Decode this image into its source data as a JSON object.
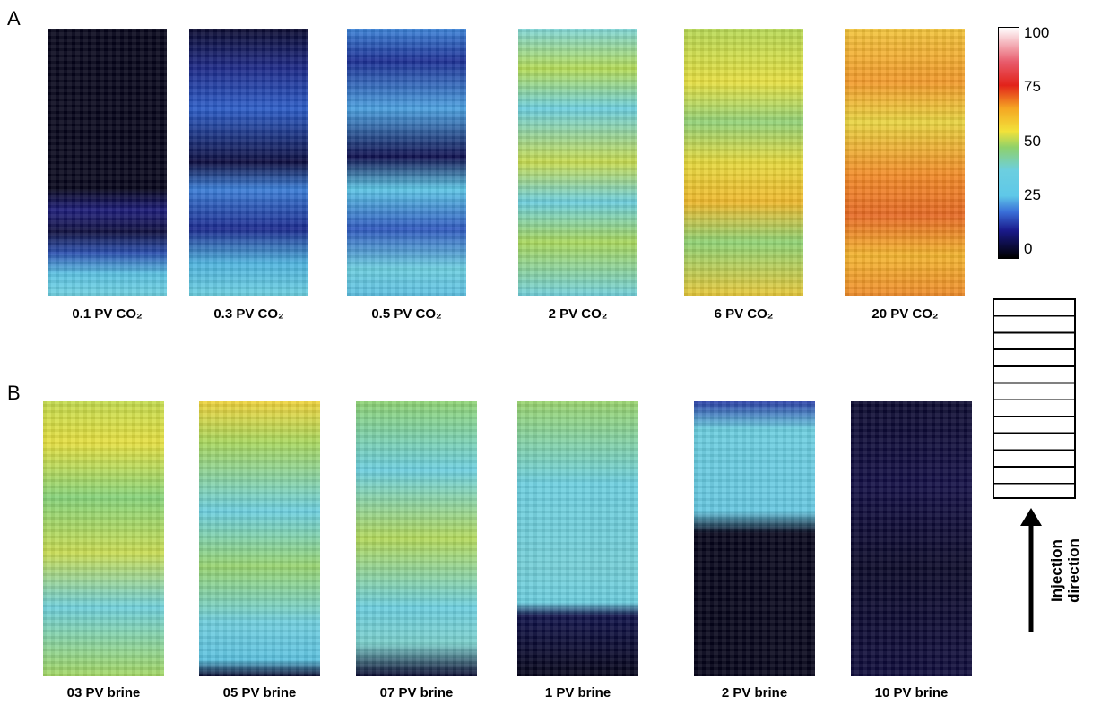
{
  "panel_a": {
    "letter": "A",
    "labels": [
      "0.1 PV CO₂",
      "0.3 PV CO₂",
      "0.5 PV CO₂",
      "2 PV CO₂",
      "6 PV CO₂",
      "20 PV CO₂"
    ]
  },
  "panel_b": {
    "letter": "B",
    "labels": [
      "03 PV brine",
      "05 PV brine",
      "07 PV brine",
      "1 PV brine",
      "2 PV brine",
      "10 PV brine"
    ]
  },
  "colorbar": {
    "ticks": [
      0,
      25,
      50,
      75,
      100
    ]
  },
  "injection_label": "Injection direction"
}
